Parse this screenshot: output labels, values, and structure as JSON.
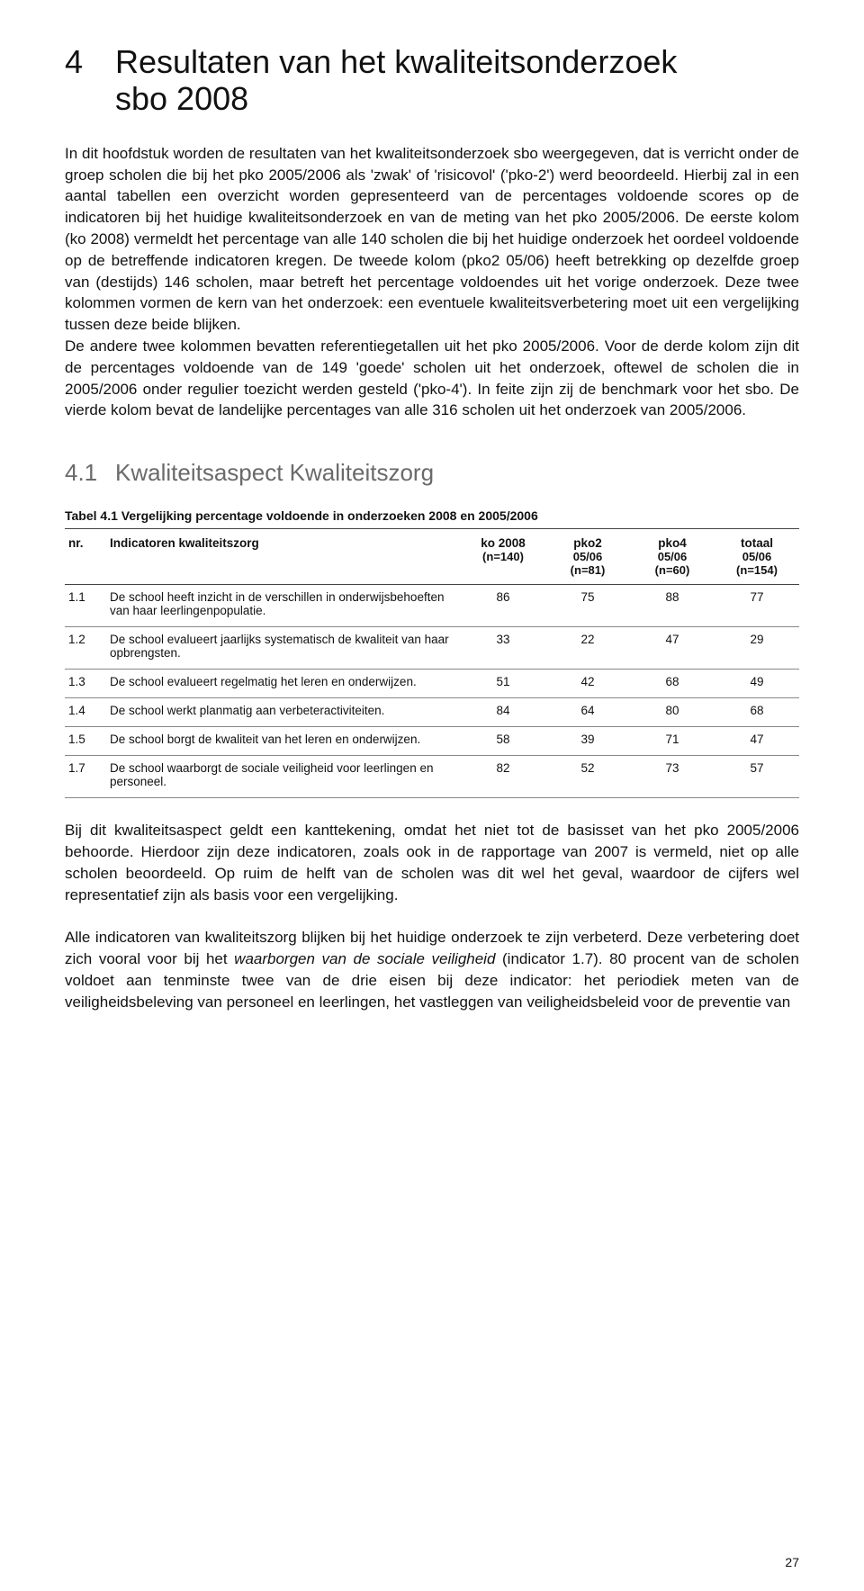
{
  "chapter": {
    "number": "4",
    "title_line1": "Resultaten van het kwaliteitsonderzoek",
    "title_line2": "sbo 2008"
  },
  "paragraphs": {
    "p1": "In dit hoofdstuk worden de resultaten van het kwaliteitsonderzoek sbo weergegeven, dat is verricht onder de groep scholen die bij het pko 2005/2006 als 'zwak' of 'risicovol' ('pko-2') werd beoordeeld. Hierbij zal in een aantal tabellen een overzicht worden gepresenteerd van de percentages voldoende scores op de indicatoren bij het huidige kwaliteitsonderzoek en van de meting van het pko 2005/2006. De eerste kolom (ko 2008) vermeldt het percentage van alle 140 scholen die bij het huidige onderzoek het oordeel voldoende op de betreffende indicatoren kregen. De tweede kolom (pko2 05/06) heeft betrekking op dezelfde groep van (destijds) 146 scholen, maar betreft het percentage voldoendes uit het vorige onderzoek. Deze twee kolommen vormen de kern van het onderzoek: een eventuele kwaliteitsverbetering moet uit een vergelijking tussen deze beide blijken.",
    "p2": "De andere twee kolommen bevatten referentiegetallen uit het pko 2005/2006. Voor de derde kolom zijn dit de percentages voldoende van de 149 'goede' scholen uit het onderzoek, oftewel de scholen die in 2005/2006 onder regulier toezicht werden gesteld ('pko-4'). In feite zijn zij de benchmark voor het sbo. De vierde kolom bevat de landelijke percentages van alle 316 scholen uit het onderzoek van 2005/2006.",
    "p3": "Bij dit kwaliteitsaspect geldt een kanttekening, omdat het niet tot de basisset van het pko 2005/2006 behoorde. Hierdoor zijn deze indicatoren, zoals ook in de rapportage van 2007 is vermeld, niet op alle scholen beoordeeld. Op ruim de helft van de scholen was dit wel het geval, waardoor de cijfers wel representatief zijn als basis voor een vergelijking.",
    "p4a": "Alle indicatoren van kwaliteitszorg blijken bij het huidige onderzoek te zijn verbeterd. Deze verbetering doet zich vooral voor bij het ",
    "p4_italic": "waarborgen van de sociale veiligheid",
    "p4b": " (indicator 1.7). 80 procent van de scholen voldoet aan tenminste twee van de drie eisen bij deze indicator: het periodiek meten van de veiligheidsbeleving van personeel en leerlingen, het vastleggen van veiligheidsbeleid voor de preventie van"
  },
  "section": {
    "number": "4.1",
    "title": "Kwaliteitsaspect Kwaliteitszorg"
  },
  "table": {
    "caption": "Tabel 4.1 Vergelijking percentage voldoende in onderzoeken 2008 en 2005/2006",
    "headers": {
      "nr": "nr.",
      "desc": "Indicatoren kwaliteitszorg",
      "c1a": "ko 2008",
      "c1b": "(n=140)",
      "c2a": "pko2",
      "c2b": "05/06",
      "c2c": "(n=81)",
      "c3a": "pko4",
      "c3b": "05/06",
      "c3c": "(n=60)",
      "c4a": "totaal",
      "c4b": "05/06",
      "c4c": "(n=154)"
    },
    "rows": [
      {
        "nr": "1.1",
        "desc": "De school heeft inzicht in de verschillen in onderwijsbehoeften van haar leerlingenpopulatie.",
        "v": [
          86,
          75,
          88,
          77
        ]
      },
      {
        "nr": "1.2",
        "desc": "De school evalueert jaarlijks systematisch de kwaliteit van haar opbrengsten.",
        "v": [
          33,
          22,
          47,
          29
        ]
      },
      {
        "nr": "1.3",
        "desc": "De school evalueert regelmatig het leren en onderwijzen.",
        "v": [
          51,
          42,
          68,
          49
        ]
      },
      {
        "nr": "1.4",
        "desc": "De school werkt planmatig aan verbeteractiviteiten.",
        "v": [
          84,
          64,
          80,
          68
        ]
      },
      {
        "nr": "1.5",
        "desc": "De school borgt de kwaliteit van het leren en onderwijzen.",
        "v": [
          58,
          39,
          71,
          47
        ]
      },
      {
        "nr": "1.7",
        "desc": "De school waarborgt de sociale veiligheid voor leerlingen en personeel.",
        "v": [
          82,
          52,
          73,
          57
        ]
      }
    ]
  },
  "page_number": "27"
}
